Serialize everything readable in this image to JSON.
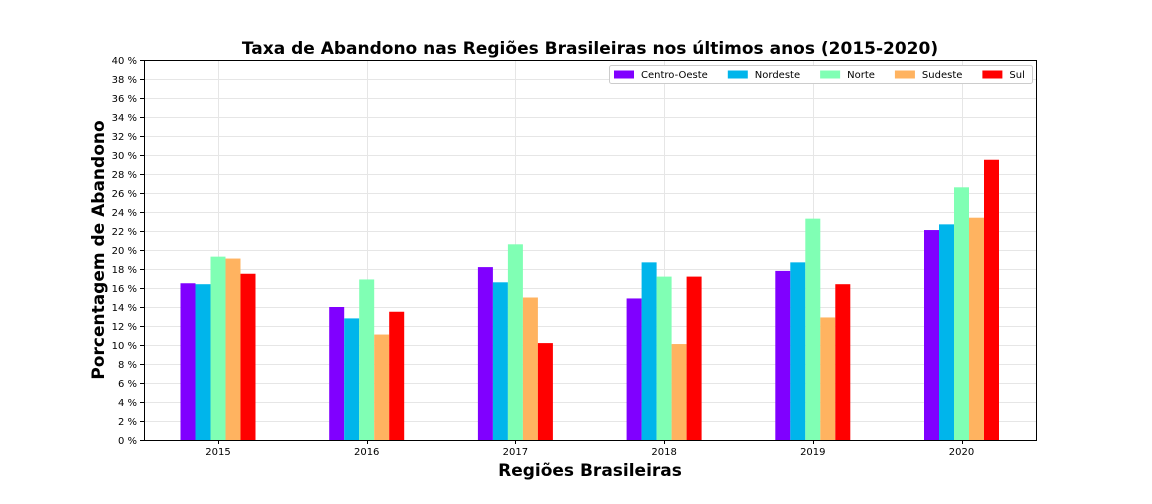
{
  "chart_data": {
    "type": "bar",
    "title": "Taxa de Abandono nas Regiões Brasileiras nos últimos anos (2015-2020)",
    "xlabel": "Regiões Brasileiras",
    "ylabel": "Porcentagem de Abandono",
    "categories": [
      "2015",
      "2016",
      "2017",
      "2018",
      "2019",
      "2020"
    ],
    "ylim": [
      0,
      40
    ],
    "y_tick_step": 2,
    "y_tick_suffix": " %",
    "grid": true,
    "legend_position": "top-right",
    "series": [
      {
        "name": "Centro-Oeste",
        "color": "#8000ff",
        "values": [
          16.5,
          14.0,
          18.2,
          14.9,
          17.8,
          22.1
        ]
      },
      {
        "name": "Nordeste",
        "color": "#00b5eb",
        "values": [
          16.4,
          12.8,
          16.6,
          18.7,
          18.7,
          22.7
        ]
      },
      {
        "name": "Norte",
        "color": "#80ffb4",
        "values": [
          19.3,
          16.9,
          20.6,
          17.2,
          23.3,
          26.6
        ]
      },
      {
        "name": "Sudeste",
        "color": "#ffb360",
        "values": [
          19.1,
          11.1,
          15.0,
          10.1,
          12.9,
          23.4
        ]
      },
      {
        "name": "Sul",
        "color": "#ff0000",
        "values": [
          17.5,
          13.5,
          10.2,
          17.2,
          16.4,
          29.5
        ]
      }
    ]
  }
}
